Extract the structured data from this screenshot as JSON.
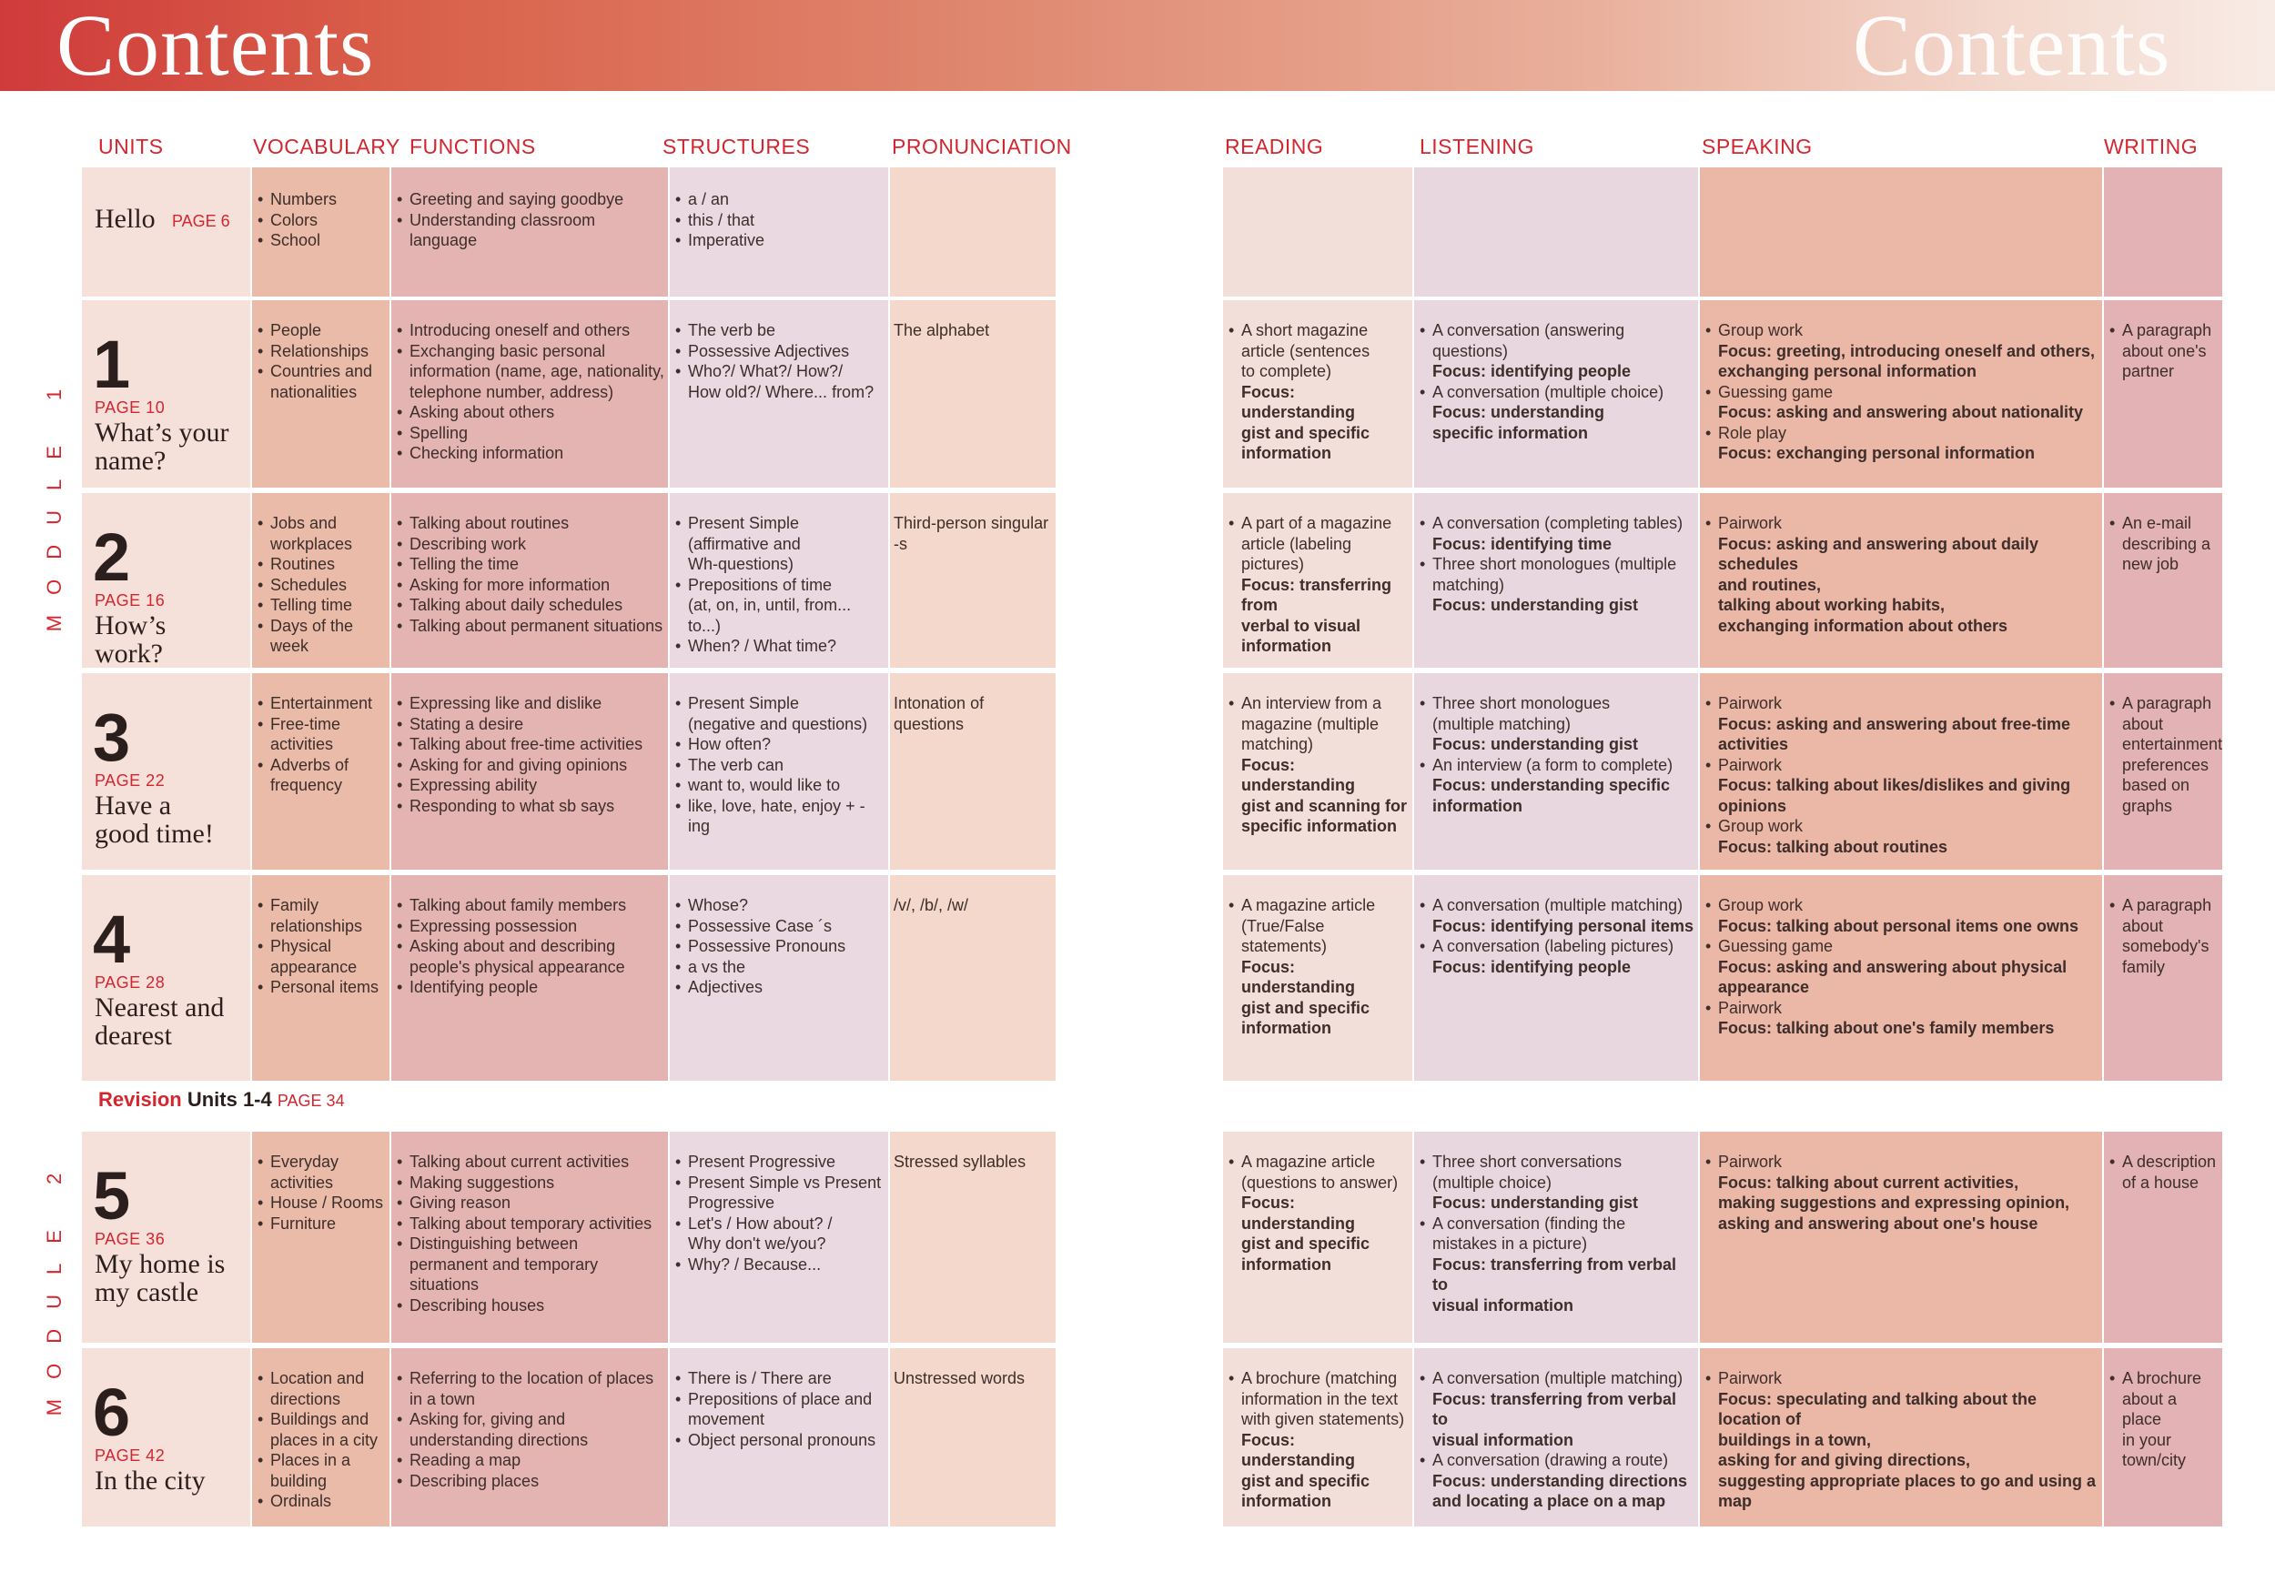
{
  "header": {
    "title_left": "Contents",
    "title_right": "Contents"
  },
  "column_headers": {
    "units": "UNITS",
    "vocabulary": "VOCABULARY",
    "functions": "FUNCTIONS",
    "structures": "STRUCTURES",
    "pronunciation": "PRONUNCIATION",
    "reading": "READING",
    "listening": "LISTENING",
    "speaking": "SPEAKING",
    "writing": "WRITING"
  },
  "modules": {
    "m1": "MODULE 1",
    "m2": "MODULE 2"
  },
  "colors": {
    "units": "#f6e1da",
    "vocabulary": "#eabba8",
    "functions": "#e4b4b2",
    "structures": "#ead9e1",
    "pronunciation": "#f4d8cc",
    "reading": "#f2dfda",
    "listening": "#e9d7df",
    "speaking": "#ebb7a6",
    "writing": "#e2b2b4",
    "accent": "#d3262f"
  },
  "revision": {
    "label": "Revision",
    "units": "Units 1-4",
    "page": "PAGE 34"
  },
  "hello": {
    "title": "Hello",
    "page": "PAGE 6",
    "vocabulary": [
      "Numbers",
      "Colors",
      "School"
    ],
    "functions": [
      "Greeting and saying goodbye",
      "Understanding classroom language"
    ],
    "structures": [
      "a / an",
      "this / that",
      "Imperative"
    ],
    "pronunciation": ""
  },
  "units": [
    {
      "number": "1",
      "page": "PAGE 10",
      "title": "What’s your\nname?",
      "vocabulary": [
        "People",
        "Relationships",
        "Countries and\nnationalities"
      ],
      "functions": [
        "Introducing oneself and others",
        "Exchanging basic personal\ninformation (name, age, nationality,\ntelephone number, address)",
        "Asking about others",
        "Spelling",
        "Checking information"
      ],
      "structures": [
        "The verb be",
        "Possessive Adjectives",
        "Who?/ What?/ How?/\nHow old?/ Where... from?"
      ],
      "pronunciation": "The alphabet",
      "reading": [
        "A short magazine\narticle (sentences\nto complete)"
      ],
      "reading_focus": "Focus: understanding\ngist and specific\ninformation",
      "listening": [
        {
          "text": "A conversation (answering\nquestions)",
          "focus": "Focus: identifying people"
        },
        {
          "text": "A conversation (multiple choice)",
          "focus": "Focus: understanding\nspecific information"
        }
      ],
      "speaking": [
        {
          "text": "Group work",
          "focus": "Focus: greeting, introducing oneself and others,\nexchanging personal information"
        },
        {
          "text": "Guessing game",
          "focus": "Focus: asking and answering about nationality"
        },
        {
          "text": "Role play",
          "focus": "Focus: exchanging personal information"
        }
      ],
      "writing": "A paragraph\nabout one's\npartner"
    },
    {
      "number": "2",
      "page": "PAGE 16",
      "title": "How’s\nwork?",
      "vocabulary": [
        "Jobs and\nworkplaces",
        "Routines",
        "Schedules",
        "Telling time",
        "Days of the week"
      ],
      "functions": [
        "Talking about routines",
        "Describing work",
        "Telling the time",
        "Asking for more information",
        "Talking about daily schedules",
        "Talking about permanent situations"
      ],
      "structures": [
        "Present Simple\n(affirmative and\nWh-questions)",
        "Prepositions of time\n(at, on, in, until, from... to...)",
        "When? / What time?"
      ],
      "pronunciation": "Third-person\nsingular -s",
      "reading": [
        "A part of a magazine\narticle (labeling\npictures)"
      ],
      "reading_focus": "Focus: transferring from\nverbal to visual\ninformation",
      "listening": [
        {
          "text": "A conversation (completing tables)",
          "focus": "Focus: identifying time"
        },
        {
          "text": "Three short monologues (multiple\nmatching)",
          "focus": "Focus: understanding gist"
        }
      ],
      "speaking": [
        {
          "text": "Pairwork",
          "focus": "Focus: asking and answering about daily schedules\nand routines,\ntalking about working habits,\nexchanging information about others"
        }
      ],
      "writing": "An e-mail\ndescribing a\nnew job"
    },
    {
      "number": "3",
      "page": "PAGE 22",
      "title": "Have a\ngood time!",
      "vocabulary": [
        "Entertainment",
        "Free-time\nactivities",
        "Adverbs of\nfrequency"
      ],
      "functions": [
        "Expressing like and dislike",
        "Stating a desire",
        "Talking about free-time activities",
        "Asking for and giving opinions",
        "Expressing ability",
        "Responding to what sb says"
      ],
      "structures": [
        "Present Simple\n(negative and questions)",
        "How often?",
        "The verb can",
        "want to, would like to",
        "like, love, hate, enjoy + -ing"
      ],
      "pronunciation": "Intonation of questions",
      "reading": [
        "An interview from a\nmagazine (multiple\nmatching)"
      ],
      "reading_focus": "Focus: understanding\ngist and scanning for\nspecific information",
      "listening": [
        {
          "text": "Three short monologues\n(multiple matching)",
          "focus": "Focus: understanding gist"
        },
        {
          "text": "An interview (a form to complete)",
          "focus": "Focus: understanding specific\ninformation"
        }
      ],
      "speaking": [
        {
          "text": "Pairwork",
          "focus": "Focus: asking and answering about free-time activities"
        },
        {
          "text": "Pairwork",
          "focus": "Focus: talking about likes/dislikes and giving opinions"
        },
        {
          "text": "Group work",
          "focus": "Focus: talking about routines"
        }
      ],
      "writing": "A paragraph\nabout\nentertainment\npreferences\nbased on\ngraphs"
    },
    {
      "number": "4",
      "page": "PAGE 28",
      "title": "Nearest and\ndearest",
      "vocabulary": [
        "Family\nrelationships",
        "Physical\nappearance",
        "Personal items"
      ],
      "functions": [
        "Talking about family members",
        "Expressing possession",
        "Asking about and describing\npeople's physical appearance",
        "Identifying people"
      ],
      "structures": [
        "Whose?",
        "Possessive Case ´s",
        "Possessive Pronouns",
        "a vs the",
        "Adjectives"
      ],
      "pronunciation": "/v/, /b/, /w/",
      "reading": [
        "A magazine article\n(True/False\nstatements)"
      ],
      "reading_focus": "Focus: understanding\ngist and specific\ninformation",
      "listening": [
        {
          "text": "A conversation (multiple matching)",
          "focus": "Focus: identifying personal items"
        },
        {
          "text": "A conversation (labeling pictures)",
          "focus": "Focus: identifying people"
        }
      ],
      "speaking": [
        {
          "text": "Group work",
          "focus": "Focus: talking about personal items one owns"
        },
        {
          "text": "Guessing game",
          "focus": "Focus: asking and answering about physical appearance"
        },
        {
          "text": "Pairwork",
          "focus": "Focus: talking about one's family members"
        }
      ],
      "writing": "A paragraph\nabout\nsomebody's\nfamily"
    },
    {
      "number": "5",
      "page": "PAGE 36",
      "title": "My home is\nmy castle",
      "vocabulary": [
        "Everyday\nactivities",
        "House / Rooms",
        "Furniture"
      ],
      "functions": [
        "Talking about current activities",
        "Making suggestions",
        "Giving reason",
        "Talking about temporary activities",
        "Distinguishing between\npermanent and temporary situations",
        "Describing houses"
      ],
      "structures": [
        "Present Progressive",
        "Present Simple vs Present\nProgressive",
        "Let's / How about? /\nWhy don't we/you?",
        "Why? / Because..."
      ],
      "pronunciation": "Stressed syllables",
      "reading": [
        "A magazine article\n(questions to answer)"
      ],
      "reading_focus": "Focus: understanding\ngist and specific\ninformation",
      "listening": [
        {
          "text": "Three short conversations\n(multiple choice)",
          "focus": "Focus: understanding gist"
        },
        {
          "text": "A conversation (finding the\nmistakes in a picture)",
          "focus": "Focus: transferring from verbal to\nvisual information"
        }
      ],
      "speaking": [
        {
          "text": "Pairwork",
          "focus": "Focus: talking about current activities,\nmaking suggestions and expressing opinion,\nasking and answering about one's house"
        }
      ],
      "writing": "A  description\nof a house"
    },
    {
      "number": "6",
      "page": "PAGE 42",
      "title": "In the city",
      "vocabulary": [
        "Location and\ndirections",
        "Buildings and\nplaces in a city",
        "Places in a\nbuilding",
        "Ordinals"
      ],
      "functions": [
        "Referring to the location of places\nin a town",
        "Asking for, giving and\nunderstanding directions",
        "Reading a map",
        "Describing places"
      ],
      "structures": [
        "There is / There are",
        "Prepositions of place and\nmovement",
        "Object personal pronouns"
      ],
      "pronunciation": "Unstressed words",
      "reading": [
        "A brochure (matching\ninformation in the text\nwith given statements)"
      ],
      "reading_focus": "Focus: understanding\ngist and specific\ninformation",
      "listening": [
        {
          "text": "A conversation (multiple matching)",
          "focus": "Focus: transferring from verbal to\nvisual information"
        },
        {
          "text": "A conversation (drawing a route)",
          "focus": "Focus: understanding directions\nand locating a place on a map"
        }
      ],
      "speaking": [
        {
          "text": "Pairwork",
          "focus": "Focus: speculating and talking about the location of\nbuildings in a town,\nasking for and giving directions,\nsuggesting appropriate places to go and using a map"
        }
      ],
      "writing": "A brochure\nabout a place\nin your\ntown/city"
    }
  ]
}
